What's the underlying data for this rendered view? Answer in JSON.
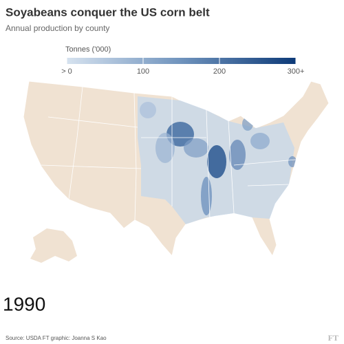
{
  "header": {
    "title": "Soyabeans conquer the US corn belt",
    "subtitle": "Annual production by county"
  },
  "legend": {
    "title": "Tonnes ('000)",
    "range": [
      0,
      300
    ],
    "ticks": [
      {
        "value": 0,
        "label": "> 0"
      },
      {
        "value": 100,
        "label": "100"
      },
      {
        "value": 200,
        "label": "200"
      },
      {
        "value": 300,
        "label": "300+"
      }
    ]
  },
  "year": "1990",
  "footer": {
    "source": "Source: USDA   FT graphic: Joanna S Kao",
    "logo": "FT"
  }
}
